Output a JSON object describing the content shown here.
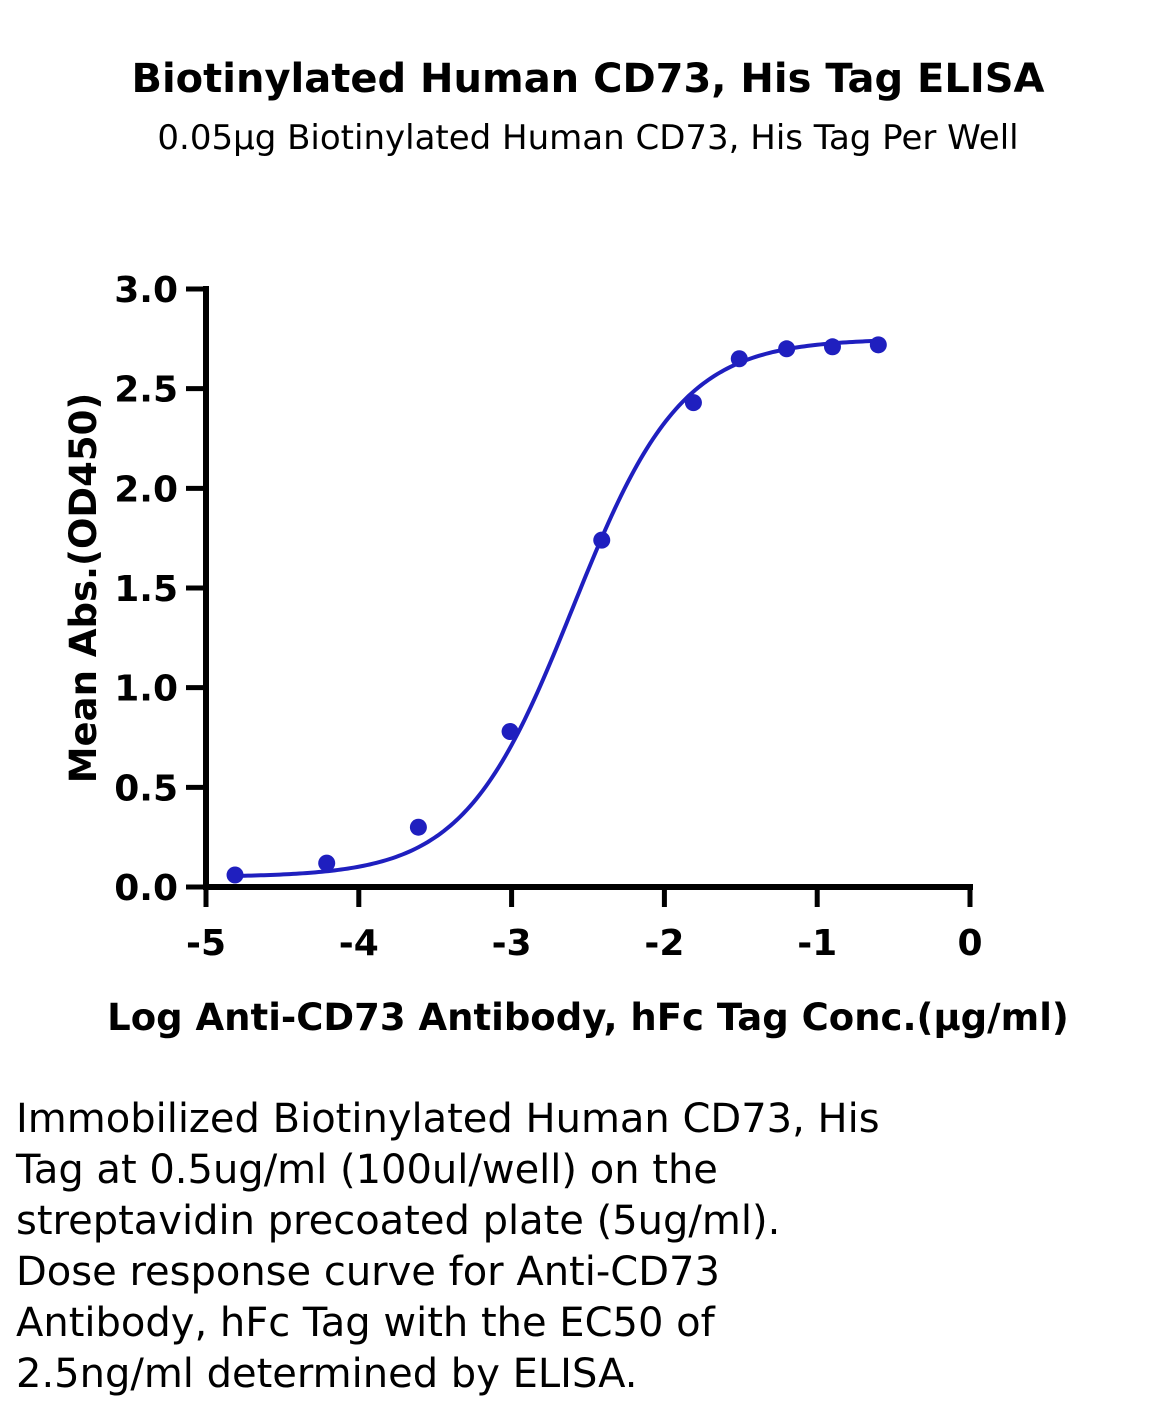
{
  "chart_data": {
    "type": "line",
    "title": "Biotinylated Human CD73, His Tag ELISA",
    "subtitle": "0.05μg Biotinylated Human CD73, His Tag Per Well",
    "xlabel": "Log Anti-CD73 Antibody, hFc Tag Conc.(μg/ml)",
    "ylabel": "Mean Abs.(OD450)",
    "xlim": [
      -5,
      0
    ],
    "ylim": [
      0,
      3.0
    ],
    "xticks": [
      "-5",
      "-4",
      "-3",
      "-2",
      "-1",
      "0"
    ],
    "yticks": [
      "0.0",
      "0.5",
      "1.0",
      "1.5",
      "2.0",
      "2.5",
      "3.0"
    ],
    "grid": false,
    "series": [
      {
        "color": "#1f1fbf",
        "points": [
          {
            "x": -4.81,
            "y": 0.06
          },
          {
            "x": -4.21,
            "y": 0.12
          },
          {
            "x": -3.61,
            "y": 0.3
          },
          {
            "x": -3.01,
            "y": 0.78
          },
          {
            "x": -2.41,
            "y": 1.74
          },
          {
            "x": -1.81,
            "y": 2.43
          },
          {
            "x": -1.51,
            "y": 2.65
          },
          {
            "x": -1.2,
            "y": 2.7
          },
          {
            "x": -0.9,
            "y": 2.71
          },
          {
            "x": -0.6,
            "y": 2.72
          }
        ],
        "fit": {
          "model": "4PL",
          "bottom": 0.05,
          "top": 2.75,
          "logEC50": -2.6,
          "hill": 1.22
        }
      }
    ]
  },
  "caption": [
    "Immobilized Biotinylated Human CD73, His",
    "Tag at 0.5ug/ml (100ul/well) on the",
    "streptavidin precoated plate (5ug/ml).",
    "Dose response curve for Anti-CD73",
    "Antibody, hFc Tag with the EC50 of",
    "2.5ng/ml determined by ELISA."
  ]
}
